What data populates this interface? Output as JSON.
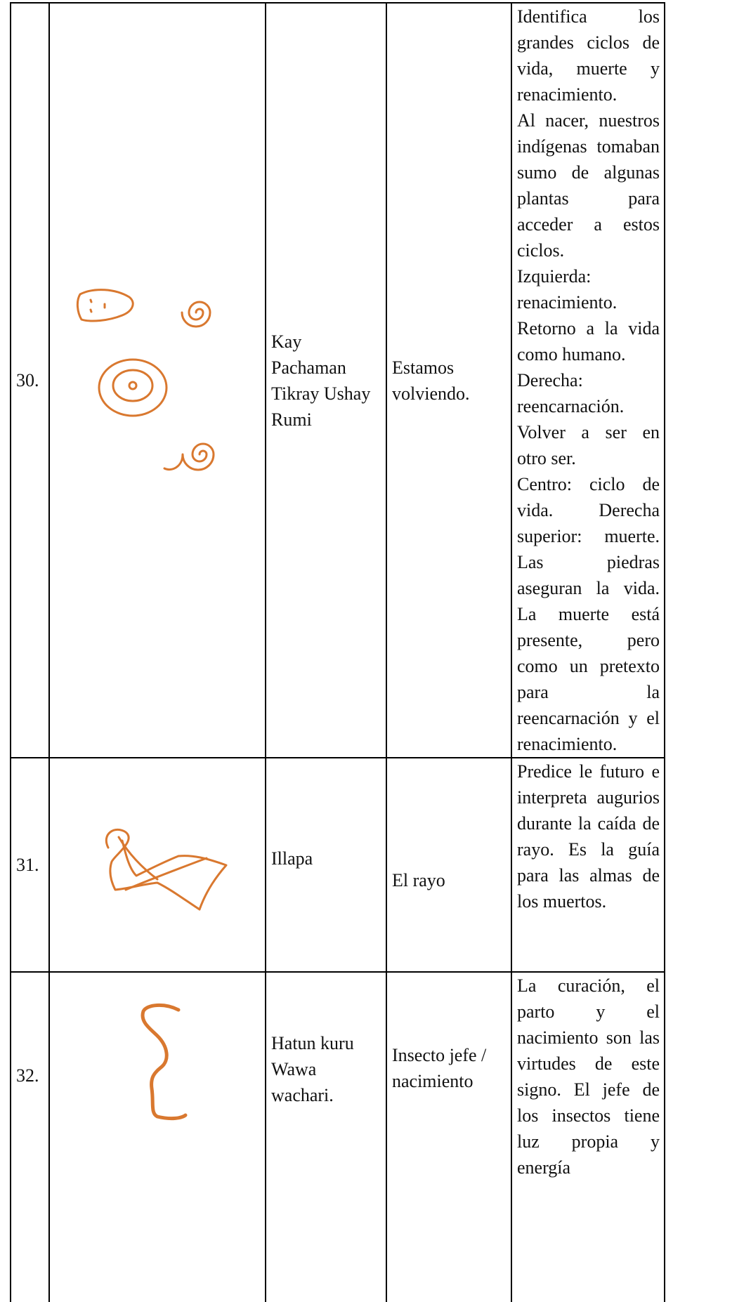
{
  "table": {
    "rows": [
      {
        "number": "30.",
        "name": "Kay Pachaman Tikray Ushay Rumi",
        "meaning": "Estamos volviendo.",
        "description": [
          "Identifica los grandes ciclos de vida, muerte y renacimiento.",
          "Al nacer, nuestros indígenas tomaban sumo de algunas plantas para acceder a estos ciclos.",
          "Izquierda: renacimiento.",
          "Retorno a la vida como humano.",
          "Derecha: reencarnación.",
          "Volver a ser en otro ser.",
          "Centro: ciclo de vida. Derecha superior: muerte. Las piedras aseguran la vida. La muerte está presente, pero como un pretexto para la reencarnación y el renacimiento."
        ]
      },
      {
        "number": "31.",
        "name": "Illapa",
        "meaning": "El rayo",
        "description": [
          "Predice le futuro e interpreta augurios durante la caída de rayo. Es la guía para las almas de los muertos."
        ]
      },
      {
        "number": "32.",
        "name": "Hatun kuru Wawa wachari.",
        "meaning": "Insecto jefe / nacimiento",
        "description": [
          "La curación, el parto y el nacimiento son las virtudes de este signo. El jefe de los insectos tiene luz propia y energía"
        ]
      }
    ]
  }
}
